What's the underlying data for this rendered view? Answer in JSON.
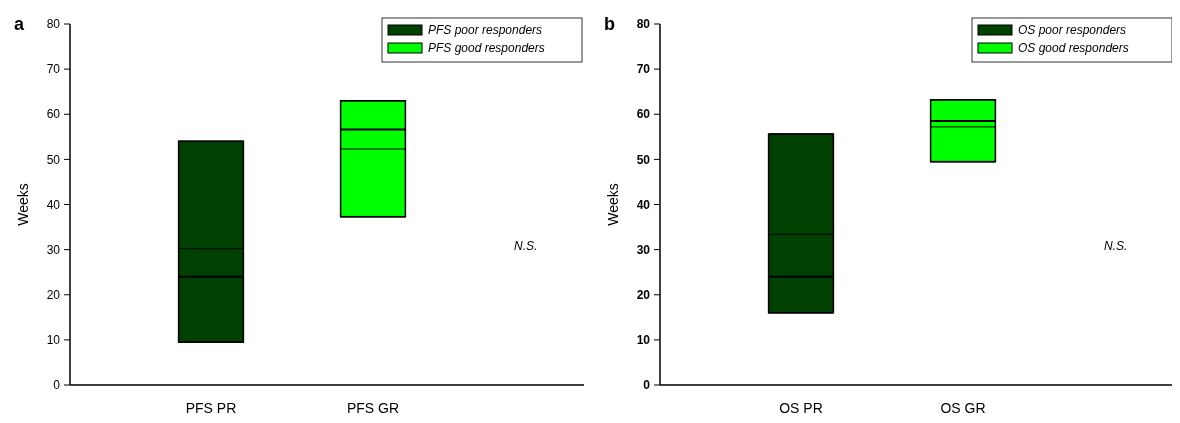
{
  "chart_data": [
    {
      "type": "box",
      "title": "a",
      "ylabel": "Weeks",
      "categories": [
        "PFS PR",
        "PFS GR"
      ],
      "ylim": [
        0,
        80
      ],
      "yticks": [
        0,
        10,
        20,
        30,
        40,
        50,
        60,
        70,
        80
      ],
      "legend": "top right",
      "grid": false,
      "annotations": [
        "N.S."
      ],
      "series": [
        {
          "name": "PFS poor responders",
          "color": "#004000",
          "boxes": [
            {
              "low": 9.5,
              "q1": 9.5,
              "median": 24,
              "q3": 54,
              "high": 54,
              "mean": 30.2
            },
            null
          ]
        },
        {
          "name": "PFS good responders",
          "color": "#00ff00",
          "boxes": [
            null,
            {
              "low": 37.3,
              "q1": 37.3,
              "median": 56.6,
              "q3": 63,
              "high": 63,
              "mean": 52.3
            }
          ]
        }
      ]
    },
    {
      "type": "box",
      "title": "b",
      "ylabel": "Weeks",
      "categories": [
        "OS PR",
        "OS GR"
      ],
      "ylim": [
        0,
        80
      ],
      "yticks": [
        0,
        10,
        20,
        30,
        40,
        50,
        60,
        70,
        80
      ],
      "legend": "top right",
      "grid": false,
      "annotations": [
        "N.S."
      ],
      "series": [
        {
          "name": "OS poor responders",
          "color": "#004000",
          "boxes": [
            {
              "low": 16,
              "q1": 16,
              "median": 24,
              "q3": 55.6,
              "high": 55.6,
              "mean": 33.4
            },
            null
          ]
        },
        {
          "name": "OS good responders",
          "color": "#00ff00",
          "boxes": [
            null,
            {
              "low": 49.5,
              "q1": 49.5,
              "median": 58.5,
              "q3": 63.2,
              "high": 63.2,
              "mean": 57.2
            }
          ]
        }
      ]
    }
  ]
}
